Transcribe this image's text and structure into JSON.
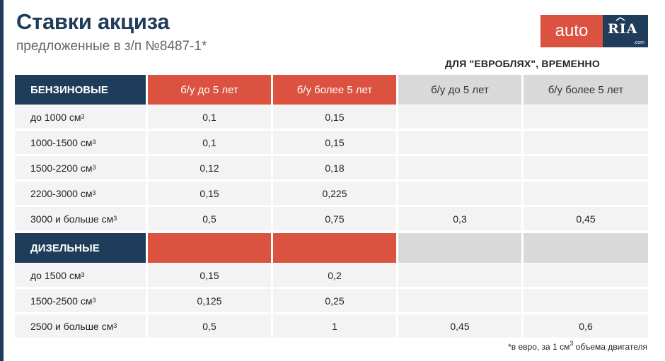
{
  "title": "Ставки акциза",
  "subtitle": "предложенные в з/п №8487-1*",
  "logo": {
    "auto": "auto",
    "ria": "RIA",
    "com": ".com"
  },
  "euro_note": "ДЛЯ \"ЕВРОБЛЯХ\", ВРЕМЕННО",
  "columns": [
    "б/у до 5 лет",
    "б/у более 5 лет",
    "б/у до 5 лет",
    "б/у более 5 лет"
  ],
  "sections": [
    {
      "name": "БЕНЗИНОВЫЕ",
      "rows": [
        {
          "label": "до 1000 см³",
          "values": [
            "0,1",
            "0,15",
            "",
            ""
          ]
        },
        {
          "label": "1000-1500 см³",
          "values": [
            "0,1",
            "0,15",
            "",
            ""
          ]
        },
        {
          "label": "1500-2200 см³",
          "values": [
            "0,12",
            "0,18",
            "",
            ""
          ]
        },
        {
          "label": "2200-3000 см³",
          "values": [
            "0,15",
            "0,225",
            "",
            ""
          ]
        },
        {
          "label": "3000 и больше см³",
          "values": [
            "0,5",
            "0,75",
            "0,3",
            "0,45"
          ]
        }
      ]
    },
    {
      "name": "ДИЗЕЛЬНЫЕ",
      "rows": [
        {
          "label": "до 1500 см³",
          "values": [
            "0,15",
            "0,2",
            "",
            ""
          ]
        },
        {
          "label": "1500-2500 см³",
          "values": [
            "0,125",
            "0,25",
            "",
            ""
          ]
        },
        {
          "label": "2500 и больше см³",
          "values": [
            "0,5",
            "1",
            "0,45",
            "0,6"
          ]
        }
      ]
    }
  ],
  "footnote": "*в евро, за 1 см³ объема двигателя",
  "colors": {
    "navy": "#1f3c5a",
    "red": "#db5240",
    "grey": "#d9d9d9",
    "row": "#f3f3f3"
  }
}
